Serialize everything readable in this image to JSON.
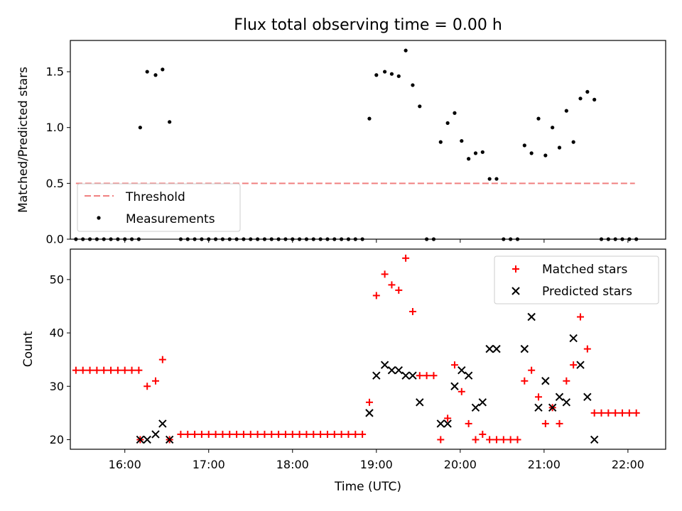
{
  "chart_data": [
    {
      "type": "scatter",
      "title": "Flux total observing time = 0.00 h",
      "xlabel": "",
      "ylabel": "Matched/Predicted stars",
      "xlim": [
        "15:21",
        "22:27"
      ],
      "ylim": [
        0,
        1.78
      ],
      "yticks": [
        "0.0",
        "0.5",
        "1.0",
        "1.5"
      ],
      "legend_position": "lower-left",
      "threshold": {
        "name": "Threshold",
        "y": 0.5,
        "x_range": [
          "15:25",
          "22:05"
        ],
        "color": "#f08080",
        "style": "dashed"
      },
      "series": [
        {
          "name": "Measurements",
          "marker": "dot",
          "color": "#000000",
          "points": [
            [
              "15:25",
              0
            ],
            [
              "15:30",
              0
            ],
            [
              "15:35",
              0
            ],
            [
              "15:40",
              0
            ],
            [
              "15:45",
              0
            ],
            [
              "15:50",
              0
            ],
            [
              "15:55",
              0
            ],
            [
              "16:00",
              0
            ],
            [
              "16:05",
              0
            ],
            [
              "16:10",
              0
            ],
            [
              "16:11",
              1.0
            ],
            [
              "16:16",
              1.5
            ],
            [
              "16:22",
              1.47
            ],
            [
              "16:27",
              1.52
            ],
            [
              "16:32",
              1.05
            ],
            [
              "16:40",
              0
            ],
            [
              "16:45",
              0
            ],
            [
              "16:50",
              0
            ],
            [
              "16:55",
              0
            ],
            [
              "17:00",
              0
            ],
            [
              "17:05",
              0
            ],
            [
              "17:10",
              0
            ],
            [
              "17:15",
              0
            ],
            [
              "17:20",
              0
            ],
            [
              "17:25",
              0
            ],
            [
              "17:30",
              0
            ],
            [
              "17:35",
              0
            ],
            [
              "17:40",
              0
            ],
            [
              "17:45",
              0
            ],
            [
              "17:50",
              0
            ],
            [
              "17:55",
              0
            ],
            [
              "18:00",
              0
            ],
            [
              "18:05",
              0
            ],
            [
              "18:10",
              0
            ],
            [
              "18:15",
              0
            ],
            [
              "18:20",
              0
            ],
            [
              "18:25",
              0
            ],
            [
              "18:30",
              0
            ],
            [
              "18:35",
              0
            ],
            [
              "18:40",
              0
            ],
            [
              "18:45",
              0
            ],
            [
              "18:50",
              0
            ],
            [
              "18:55",
              1.08
            ],
            [
              "19:00",
              1.47
            ],
            [
              "19:06",
              1.5
            ],
            [
              "19:11",
              1.48
            ],
            [
              "19:16",
              1.46
            ],
            [
              "19:21",
              1.69
            ],
            [
              "19:26",
              1.38
            ],
            [
              "19:31",
              1.19
            ],
            [
              "19:36",
              0
            ],
            [
              "19:41",
              0
            ],
            [
              "19:46",
              0.87
            ],
            [
              "19:51",
              1.04
            ],
            [
              "19:56",
              1.13
            ],
            [
              "20:01",
              0.88
            ],
            [
              "20:06",
              0.72
            ],
            [
              "20:11",
              0.77
            ],
            [
              "20:16",
              0.78
            ],
            [
              "20:21",
              0.54
            ],
            [
              "20:26",
              0.54
            ],
            [
              "20:31",
              0
            ],
            [
              "20:36",
              0
            ],
            [
              "20:41",
              0
            ],
            [
              "20:46",
              0.84
            ],
            [
              "20:51",
              0.77
            ],
            [
              "20:56",
              1.08
            ],
            [
              "21:01",
              0.75
            ],
            [
              "21:06",
              1.0
            ],
            [
              "21:11",
              0.82
            ],
            [
              "21:16",
              1.15
            ],
            [
              "21:21",
              0.87
            ],
            [
              "21:26",
              1.26
            ],
            [
              "21:31",
              1.32
            ],
            [
              "21:36",
              1.25
            ],
            [
              "21:41",
              0
            ],
            [
              "21:46",
              0
            ],
            [
              "21:51",
              0
            ],
            [
              "21:56",
              0
            ],
            [
              "22:01",
              0
            ],
            [
              "22:06",
              0
            ]
          ]
        }
      ]
    },
    {
      "type": "scatter",
      "title": "",
      "xlabel": "Time (UTC)",
      "ylabel": "Count",
      "xlim": [
        "15:21",
        "22:27"
      ],
      "ylim": [
        18.2,
        55.7
      ],
      "xticks": [
        "16:00",
        "17:00",
        "18:00",
        "19:00",
        "20:00",
        "21:00",
        "22:00"
      ],
      "yticks": [
        "20",
        "30",
        "40",
        "50"
      ],
      "legend_position": "top-right",
      "series": [
        {
          "name": "Matched stars",
          "marker": "plus",
          "color": "#ff0000",
          "points": [
            [
              "15:25",
              33
            ],
            [
              "15:30",
              33
            ],
            [
              "15:35",
              33
            ],
            [
              "15:40",
              33
            ],
            [
              "15:45",
              33
            ],
            [
              "15:50",
              33
            ],
            [
              "15:55",
              33
            ],
            [
              "16:00",
              33
            ],
            [
              "16:05",
              33
            ],
            [
              "16:10",
              33
            ],
            [
              "16:11",
              20
            ],
            [
              "16:16",
              30
            ],
            [
              "16:22",
              31
            ],
            [
              "16:27",
              35
            ],
            [
              "16:32",
              20
            ],
            [
              "16:40",
              21
            ],
            [
              "16:45",
              21
            ],
            [
              "16:50",
              21
            ],
            [
              "16:55",
              21
            ],
            [
              "17:00",
              21
            ],
            [
              "17:05",
              21
            ],
            [
              "17:10",
              21
            ],
            [
              "17:15",
              21
            ],
            [
              "17:20",
              21
            ],
            [
              "17:25",
              21
            ],
            [
              "17:30",
              21
            ],
            [
              "17:35",
              21
            ],
            [
              "17:40",
              21
            ],
            [
              "17:45",
              21
            ],
            [
              "17:50",
              21
            ],
            [
              "17:55",
              21
            ],
            [
              "18:00",
              21
            ],
            [
              "18:05",
              21
            ],
            [
              "18:10",
              21
            ],
            [
              "18:15",
              21
            ],
            [
              "18:20",
              21
            ],
            [
              "18:25",
              21
            ],
            [
              "18:30",
              21
            ],
            [
              "18:35",
              21
            ],
            [
              "18:40",
              21
            ],
            [
              "18:45",
              21
            ],
            [
              "18:50",
              21
            ],
            [
              "18:55",
              27
            ],
            [
              "19:00",
              47
            ],
            [
              "19:06",
              51
            ],
            [
              "19:11",
              49
            ],
            [
              "19:16",
              48
            ],
            [
              "19:21",
              54
            ],
            [
              "19:26",
              44
            ],
            [
              "19:31",
              32
            ],
            [
              "19:36",
              32
            ],
            [
              "19:41",
              32
            ],
            [
              "19:46",
              20
            ],
            [
              "19:51",
              24
            ],
            [
              "19:56",
              34
            ],
            [
              "20:01",
              29
            ],
            [
              "20:06",
              23
            ],
            [
              "20:11",
              20
            ],
            [
              "20:16",
              21
            ],
            [
              "20:21",
              20
            ],
            [
              "20:26",
              20
            ],
            [
              "20:31",
              20
            ],
            [
              "20:36",
              20
            ],
            [
              "20:41",
              20
            ],
            [
              "20:46",
              31
            ],
            [
              "20:51",
              33
            ],
            [
              "20:56",
              28
            ],
            [
              "21:01",
              23
            ],
            [
              "21:06",
              26
            ],
            [
              "21:11",
              23
            ],
            [
              "21:16",
              31
            ],
            [
              "21:21",
              34
            ],
            [
              "21:26",
              43
            ],
            [
              "21:31",
              37
            ],
            [
              "21:36",
              25
            ],
            [
              "21:41",
              25
            ],
            [
              "21:46",
              25
            ],
            [
              "21:51",
              25
            ],
            [
              "21:56",
              25
            ],
            [
              "22:01",
              25
            ],
            [
              "22:06",
              25
            ]
          ]
        },
        {
          "name": "Predicted stars",
          "marker": "x",
          "color": "#000000",
          "points": [
            [
              "16:11",
              20
            ],
            [
              "16:16",
              20
            ],
            [
              "16:22",
              21
            ],
            [
              "16:27",
              23
            ],
            [
              "16:32",
              20
            ],
            [
              "18:55",
              25
            ],
            [
              "19:00",
              32
            ],
            [
              "19:06",
              34
            ],
            [
              "19:11",
              33
            ],
            [
              "19:16",
              33
            ],
            [
              "19:21",
              32
            ],
            [
              "19:26",
              32
            ],
            [
              "19:31",
              27
            ],
            [
              "19:46",
              23
            ],
            [
              "19:51",
              23
            ],
            [
              "19:56",
              30
            ],
            [
              "20:01",
              33
            ],
            [
              "20:06",
              32
            ],
            [
              "20:11",
              26
            ],
            [
              "20:16",
              27
            ],
            [
              "20:21",
              37
            ],
            [
              "20:26",
              37
            ],
            [
              "20:46",
              37
            ],
            [
              "20:51",
              43
            ],
            [
              "20:56",
              26
            ],
            [
              "21:01",
              31
            ],
            [
              "21:06",
              26
            ],
            [
              "21:11",
              28
            ],
            [
              "21:16",
              27
            ],
            [
              "21:21",
              39
            ],
            [
              "21:26",
              34
            ],
            [
              "21:31",
              28
            ],
            [
              "21:36",
              20
            ]
          ]
        }
      ]
    }
  ]
}
